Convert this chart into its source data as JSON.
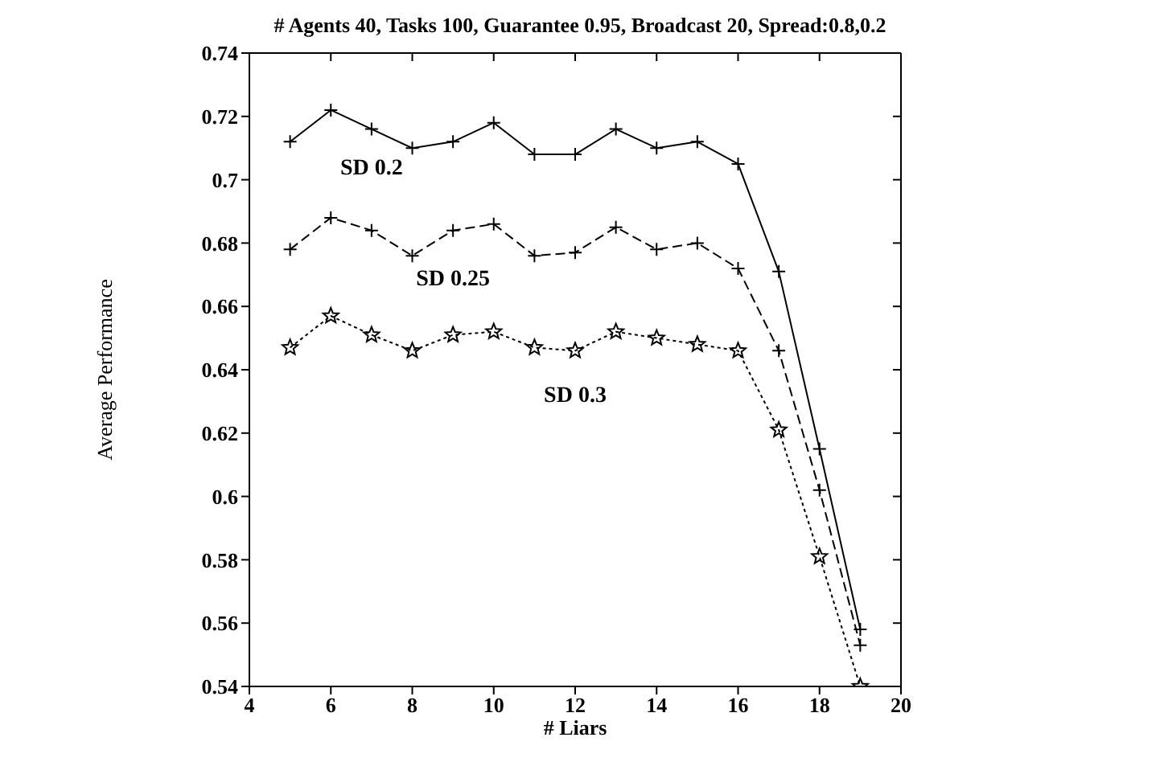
{
  "chart_data": {
    "type": "line",
    "title": "# Agents 40, Tasks 100, Guarantee 0.95, Broadcast 20, Spread:0.8,0.2",
    "xlabel": "# Liars",
    "ylabel": "Average Performance",
    "x": [
      5,
      6,
      7,
      8,
      9,
      10,
      11,
      12,
      13,
      14,
      15,
      16,
      17,
      18,
      19
    ],
    "series": [
      {
        "name": "SD 0.2",
        "color": "#000000",
        "marker": "cross",
        "line_style": "solid",
        "values": [
          0.712,
          0.722,
          0.716,
          0.71,
          0.712,
          0.718,
          0.708,
          0.708,
          0.716,
          0.71,
          0.712,
          0.705,
          0.671,
          0.615,
          0.558
        ]
      },
      {
        "name": "SD 0.25",
        "color": "#000000",
        "marker": "cross",
        "line_style": "dashed",
        "values": [
          0.678,
          0.688,
          0.684,
          0.676,
          0.684,
          0.686,
          0.676,
          0.677,
          0.685,
          0.678,
          0.68,
          0.672,
          0.646,
          0.602,
          0.553
        ]
      },
      {
        "name": "SD 0.3",
        "color": "#000000",
        "marker": "star",
        "line_style": "dotted",
        "values": [
          0.647,
          0.657,
          0.651,
          0.646,
          0.651,
          0.652,
          0.647,
          0.646,
          0.652,
          0.65,
          0.648,
          0.646,
          0.621,
          0.581,
          0.54
        ]
      }
    ],
    "xlim": [
      4,
      20
    ],
    "xticks": [
      4,
      6,
      8,
      10,
      12,
      14,
      16,
      18,
      20
    ],
    "ylim": [
      0.54,
      0.74
    ],
    "yticks": [
      0.54,
      0.56,
      0.58,
      0.6,
      0.62,
      0.64,
      0.66,
      0.68,
      0.7,
      0.72,
      0.74
    ],
    "grid": false,
    "legend": false
  }
}
